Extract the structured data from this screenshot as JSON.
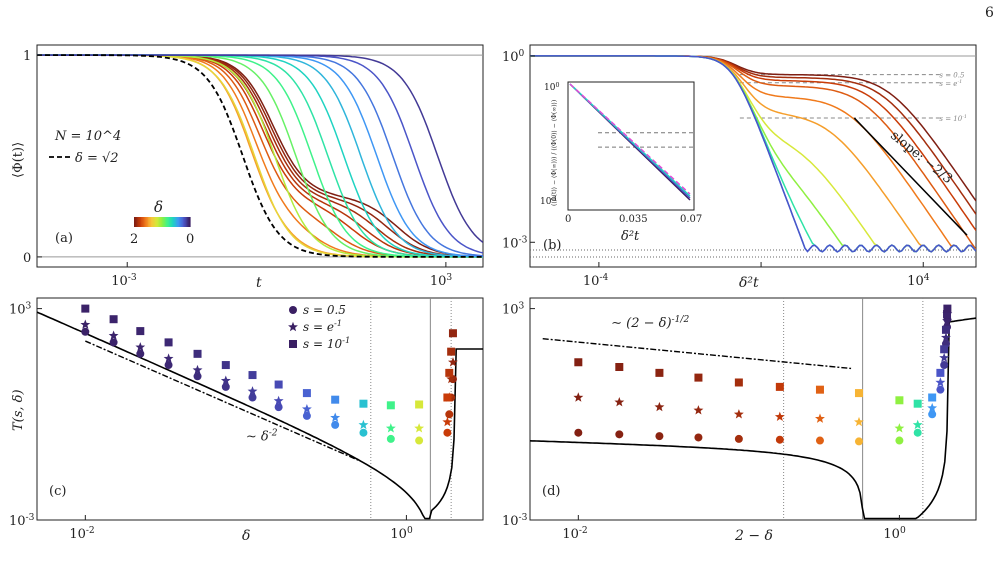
{
  "page_number": "6",
  "colormap": [
    "#7f1f13",
    "#c93c08",
    "#f07a1c",
    "#f9c23a",
    "#d7e83a",
    "#8ff041",
    "#3ff28a",
    "#1fd3c2",
    "#3f97f4",
    "#4b55c8",
    "#3a1f63"
  ],
  "chart_data": [
    {
      "id": "a",
      "type": "line",
      "panel_label": "(a)",
      "xlabel": "t",
      "ylabel": "⟨Φ(t)⟩",
      "xscale": "log",
      "xlim": [
        2e-05,
        5000
      ],
      "ylim": [
        -0.05,
        1.05
      ],
      "xticks": [
        "10^{-3}",
        "10^{3}"
      ],
      "yticks": [
        "0",
        "1"
      ],
      "annotations": [
        "N = 10^4",
        "δ = √2"
      ],
      "colorbar": {
        "label": "δ",
        "min_label": "2",
        "max_label": "0"
      },
      "series_note": "curves colored by δ from 2 (dark red) to 0 (dark purple); dashed black = δ = √2",
      "curves": [
        {
          "delta": 2.0,
          "t_half": 0.55,
          "plateau": 0.3,
          "t_end": 120
        },
        {
          "delta": 1.95,
          "t_half": 0.5,
          "plateau": 0.29,
          "t_end": 80
        },
        {
          "delta": 1.9,
          "t_half": 0.45,
          "plateau": 0.28,
          "t_end": 50
        },
        {
          "delta": 1.85,
          "t_half": 0.4,
          "plateau": 0.27,
          "t_end": 30
        },
        {
          "delta": 1.8,
          "t_half": 0.35,
          "plateau": 0.26,
          "t_end": 18
        },
        {
          "delta": 1.7,
          "t_half": 0.3,
          "plateau": 0.22,
          "t_end": 8
        },
        {
          "delta": 1.6,
          "t_half": 0.25,
          "plateau": 0.17,
          "t_end": 3
        },
        {
          "delta": 1.5,
          "t_half": 0.2,
          "plateau": 0.12,
          "t_end": 1
        },
        {
          "delta": 1.3,
          "t_half": 0.25,
          "plateau": 0.0,
          "t_end": 0.25
        },
        {
          "delta": 1.1,
          "t_half": 0.6,
          "plateau": 0.0,
          "t_end": 0.6
        },
        {
          "delta": 0.9,
          "t_half": 1.5,
          "plateau": 0.0,
          "t_end": 1.5
        },
        {
          "delta": 0.8,
          "t_half": 3,
          "plateau": 0.0,
          "t_end": 3
        },
        {
          "delta": 0.7,
          "t_half": 6,
          "plateau": 0.0,
          "t_end": 6
        },
        {
          "delta": 0.6,
          "t_half": 12,
          "plateau": 0.0,
          "t_end": 12
        },
        {
          "delta": 0.5,
          "t_half": 25,
          "plateau": 0.0,
          "t_end": 25
        },
        {
          "delta": 0.4,
          "t_half": 50,
          "plateau": 0.0,
          "t_end": 50
        },
        {
          "delta": 0.3,
          "t_half": 100,
          "plateau": 0.0,
          "t_end": 100
        },
        {
          "delta": 0.2,
          "t_half": 250,
          "plateau": 0.0,
          "t_end": 250
        },
        {
          "delta": 0.1,
          "t_half": 700,
          "plateau": 0.0,
          "t_end": 700
        }
      ],
      "dashed_curve": {
        "delta": 1.4142,
        "t_half": 0.15,
        "plateau": 0.0,
        "t_end": 0.15
      }
    },
    {
      "id": "b",
      "type": "line",
      "panel_label": "(b)",
      "xlabel": "δ²t",
      "ylabel": "",
      "xscale": "log",
      "yscale": "log",
      "xlim": [
        2e-06,
        200000
      ],
      "ylim": [
        0.0004,
        1.5
      ],
      "xticks": [
        "10^{-4}",
        "10^{0}",
        "10^{4}"
      ],
      "yticks": [
        "10^{-3}",
        "10^{0}"
      ],
      "hlines": [
        {
          "label": "s = 0.5",
          "y": 0.5
        },
        {
          "label": "s = e^{-1}",
          "y": 0.37
        },
        {
          "label": "s = 10^{-1}",
          "y": 0.1
        }
      ],
      "slope_label": "slope: −2/3",
      "curves": [
        {
          "delta": 2.0,
          "x_half": 1500,
          "plateau": 0.5
        },
        {
          "delta": 1.9,
          "x_half": 1000,
          "plateau": 0.45
        },
        {
          "delta": 1.8,
          "x_half": 600,
          "plateau": 0.4
        },
        {
          "delta": 1.7,
          "x_half": 350,
          "plateau": 0.33
        },
        {
          "delta": 1.6,
          "x_half": 150,
          "plateau": 0.22
        },
        {
          "delta": 1.5,
          "x_half": 50,
          "plateau": 0.12
        },
        {
          "delta": 1.2,
          "x_half": 10,
          "plateau": 0.05
        },
        {
          "delta": 1.0,
          "x_half": 4,
          "plateau": 0.02
        },
        {
          "delta": 0.7,
          "x_half": 1,
          "plateau": 0.01
        },
        {
          "delta": 0.4,
          "x_half": 0.25,
          "plateau": 0.0
        },
        {
          "delta": 0.2,
          "x_half": 0.08,
          "plateau": 0.0
        }
      ],
      "inset": {
        "xlabel": "δ²t",
        "ylabel": "(⟨Φ(t)⟩ − ⟨Φ(∞)⟩) / (⟨Φ(0)⟩ − ⟨Φ(∞)⟩)",
        "xlim": [
          0,
          0.07
        ],
        "xticks": [
          "0",
          "0.035",
          "0.07"
        ],
        "yticks": [
          "10^{-1}",
          "10^{0}"
        ]
      }
    },
    {
      "id": "c",
      "type": "scatter",
      "panel_label": "(c)",
      "xlabel": "δ",
      "ylabel": "T(s, δ)",
      "xscale": "log",
      "yscale": "log",
      "xlim": [
        0.005,
        3
      ],
      "ylim": [
        0.001,
        2000
      ],
      "xticks": [
        "10^{-2}",
        "10^{0}"
      ],
      "yticks": [
        "10^{-3}",
        "10^{3}"
      ],
      "legend": [
        "s = 0.5",
        "s = e^{-1}",
        "s = 10^{-1}"
      ],
      "annotation": "∼ δ^{-2}",
      "x": [
        0.01,
        0.015,
        0.022,
        0.033,
        0.05,
        0.075,
        0.11,
        0.16,
        0.24,
        0.36,
        0.54,
        0.8,
        1.2,
        1.8,
        1.85,
        1.9,
        1.95
      ],
      "series": [
        {
          "name": "s = 0.5",
          "values": [
            220,
            110,
            52,
            25,
            12,
            6,
            3,
            1.6,
            0.9,
            0.5,
            0.3,
            0.2,
            0.18,
            0.3,
            1,
            3,
            10
          ]
        },
        {
          "name": "s = e^{-1}",
          "values": [
            350,
            170,
            80,
            38,
            18,
            9,
            4.5,
            2.4,
            1.4,
            0.8,
            0.5,
            0.4,
            0.4,
            0.6,
            3,
            10,
            30
          ]
        },
        {
          "name": "s = 10^{-1}",
          "values": [
            1000,
            500,
            230,
            110,
            52,
            25,
            13,
            7,
            4,
            2.6,
            2,
            1.8,
            1.9,
            3,
            15,
            60,
            200
          ]
        }
      ]
    },
    {
      "id": "d",
      "type": "scatter",
      "panel_label": "(d)",
      "xlabel": "2 − δ",
      "ylabel": "",
      "xscale": "log",
      "yscale": "log",
      "xlim": [
        0.005,
        3
      ],
      "ylim": [
        0.001,
        2000
      ],
      "xticks": [
        "10^{-2}",
        "10^{0}"
      ],
      "yticks": [
        "10^{-3}",
        "10^{3}"
      ],
      "annotation": "∼ (2 − δ)^{-1/2}",
      "x": [
        0.01,
        0.018,
        0.032,
        0.056,
        0.1,
        0.18,
        0.32,
        0.56,
        1.0,
        1.3,
        1.6,
        1.8,
        1.9,
        1.95,
        1.98,
        1.99
      ],
      "series": [
        {
          "name": "s = 0.5",
          "values": [
            0.3,
            0.27,
            0.24,
            0.22,
            0.2,
            0.19,
            0.18,
            0.17,
            0.18,
            0.3,
            1,
            5,
            25,
            100,
            300,
            500
          ]
        },
        {
          "name": "s = e^{-1}",
          "values": [
            3,
            2.2,
            1.6,
            1.3,
            1.0,
            0.85,
            0.75,
            0.6,
            0.4,
            0.5,
            1.5,
            8,
            40,
            150,
            450,
            700
          ]
        },
        {
          "name": "s = 10^{-1}",
          "values": [
            30,
            22,
            15,
            11,
            8,
            6,
            5,
            4,
            2.5,
            2,
            3,
            15,
            70,
            250,
            700,
            1000
          ]
        }
      ]
    }
  ]
}
